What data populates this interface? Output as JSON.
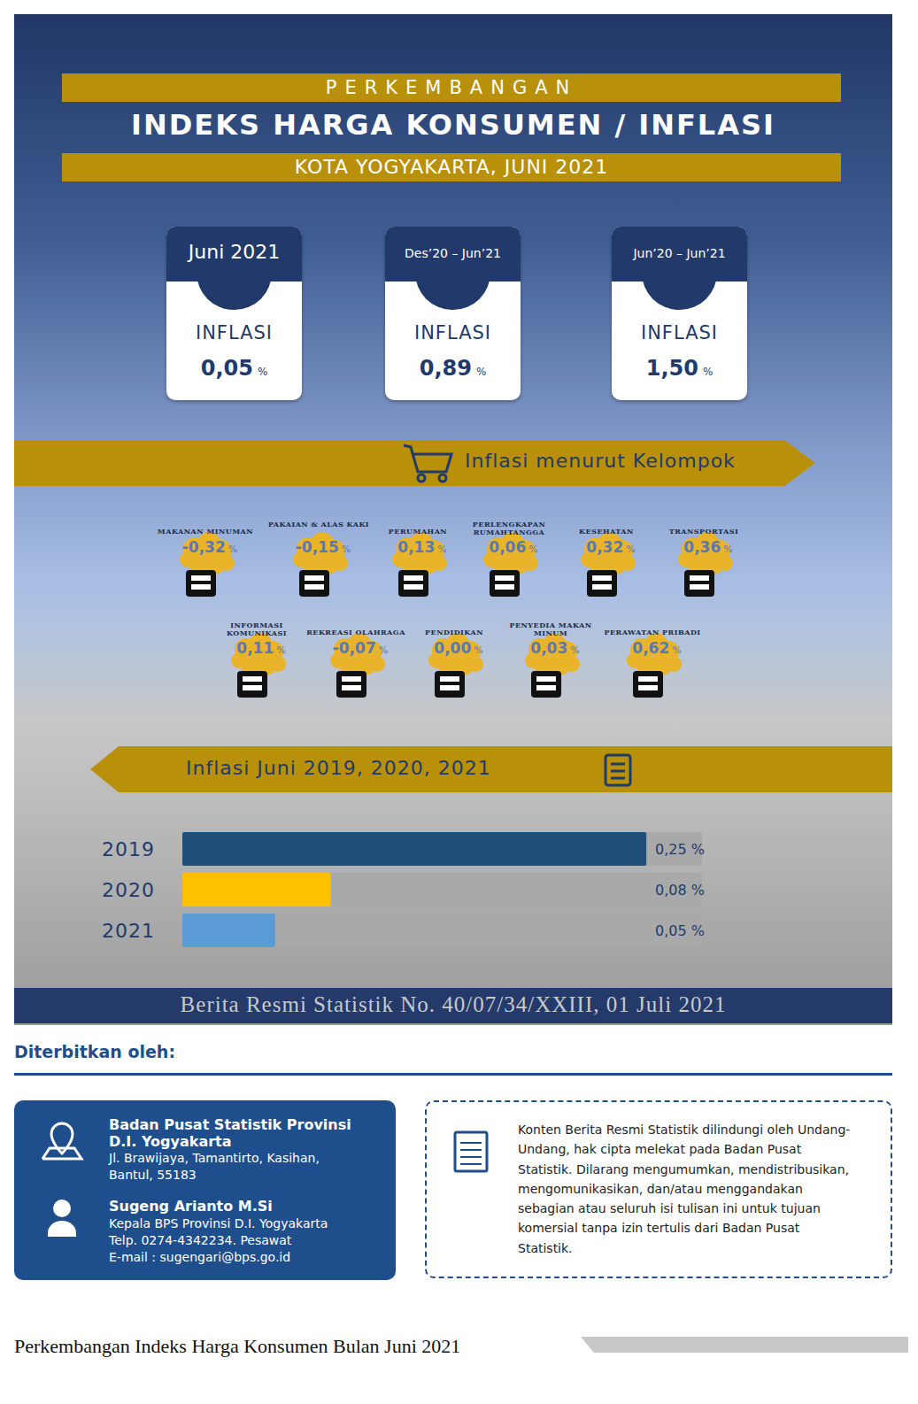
{
  "header": {
    "kicker": "PERKEMBANGAN",
    "title": "INDEKS HARGA KONSUMEN / INFLASI",
    "subtitle": "KOTA YOGYAKARTA, JUNI 2021"
  },
  "summary": [
    {
      "period": "Juni 2021",
      "label": "INFLASI",
      "value": "0,05",
      "unit": "%"
    },
    {
      "period": "Des’20 – Jun’21",
      "label": "INFLASI",
      "value": "0,89",
      "unit": "%"
    },
    {
      "period": "Jun’20 – Jun’21",
      "label": "INFLASI",
      "value": "1,50",
      "unit": "%"
    }
  ],
  "groups": {
    "title": "Inflasi menurut Kelompok",
    "unit": "%",
    "items": [
      {
        "name": "MAKANAN MINUMAN",
        "value": "-0,32"
      },
      {
        "name": "PAKAIAN & ALAS KAKI",
        "value": "-0,15"
      },
      {
        "name": "PERUMAHAN",
        "value": "0,13"
      },
      {
        "name": "PERLENGKAPAN RUMAHTANGGA",
        "value": "0,06"
      },
      {
        "name": "KESEHATAN",
        "value": "0,32"
      },
      {
        "name": "TRANSPORTASI",
        "value": "0,36"
      },
      {
        "name": "INFORMASI KOMUNIKASI",
        "value": "0,11"
      },
      {
        "name": "REKREASI OLAHRAGA",
        "value": "-0,07"
      },
      {
        "name": "PENDIDIKAN",
        "value": "0,00"
      },
      {
        "name": "PENYEDIA MAKAN MINUM",
        "value": "0,03"
      },
      {
        "name": "PERAWATAN PRIBADI",
        "value": "0,62"
      }
    ]
  },
  "chart_data": {
    "type": "bar",
    "title": "Inflasi Juni 2019, 2020, 2021",
    "orientation": "horizontal",
    "categories": [
      "2019",
      "2020",
      "2021"
    ],
    "values": [
      0.25,
      0.08,
      0.05
    ],
    "value_labels": [
      "0,25 %",
      "0,08 %",
      "0,05 %"
    ],
    "colors": [
      "#1f4e79",
      "#ffc000",
      "#5b9bd5"
    ],
    "xlim": [
      0,
      0.28
    ],
    "data_labels": true,
    "tick_labels": "y"
  },
  "footer": {
    "release": "Berita Resmi Statistik No. 40/07/34/XXIII, 01 Juli 2021",
    "published_by": "Diterbitkan oleh:",
    "publisher": {
      "name": "Badan Pusat Statistik Provinsi D.I. Yogyakarta",
      "address": "Jl. Brawijaya, Tamantirto, Kasihan, Bantul, 55183"
    },
    "contact": {
      "name": "Sugeng Arianto M.Si",
      "role": "Kepala BPS Provinsi D.I. Yogyakarta",
      "phone": "Telp. 0274-4342234. Pesawat",
      "email": "E-mail : sugengari@bps.go.id"
    },
    "copyright": "Konten Berita Resmi Statistik dilindungi oleh Undang-Undang, hak cipta melekat pada Badan Pusat Statistik. Dilarang mengumumkan, mendistribusikan, mengomunikasikan, dan/atau menggandakan sebagian atau seluruh isi tulisan ini untuk tujuan komersial tanpa izin tertulis dari Badan Pusat Statistik.",
    "page_title": "Perkembangan Indeks Harga Konsumen Bulan Juni 2021"
  }
}
